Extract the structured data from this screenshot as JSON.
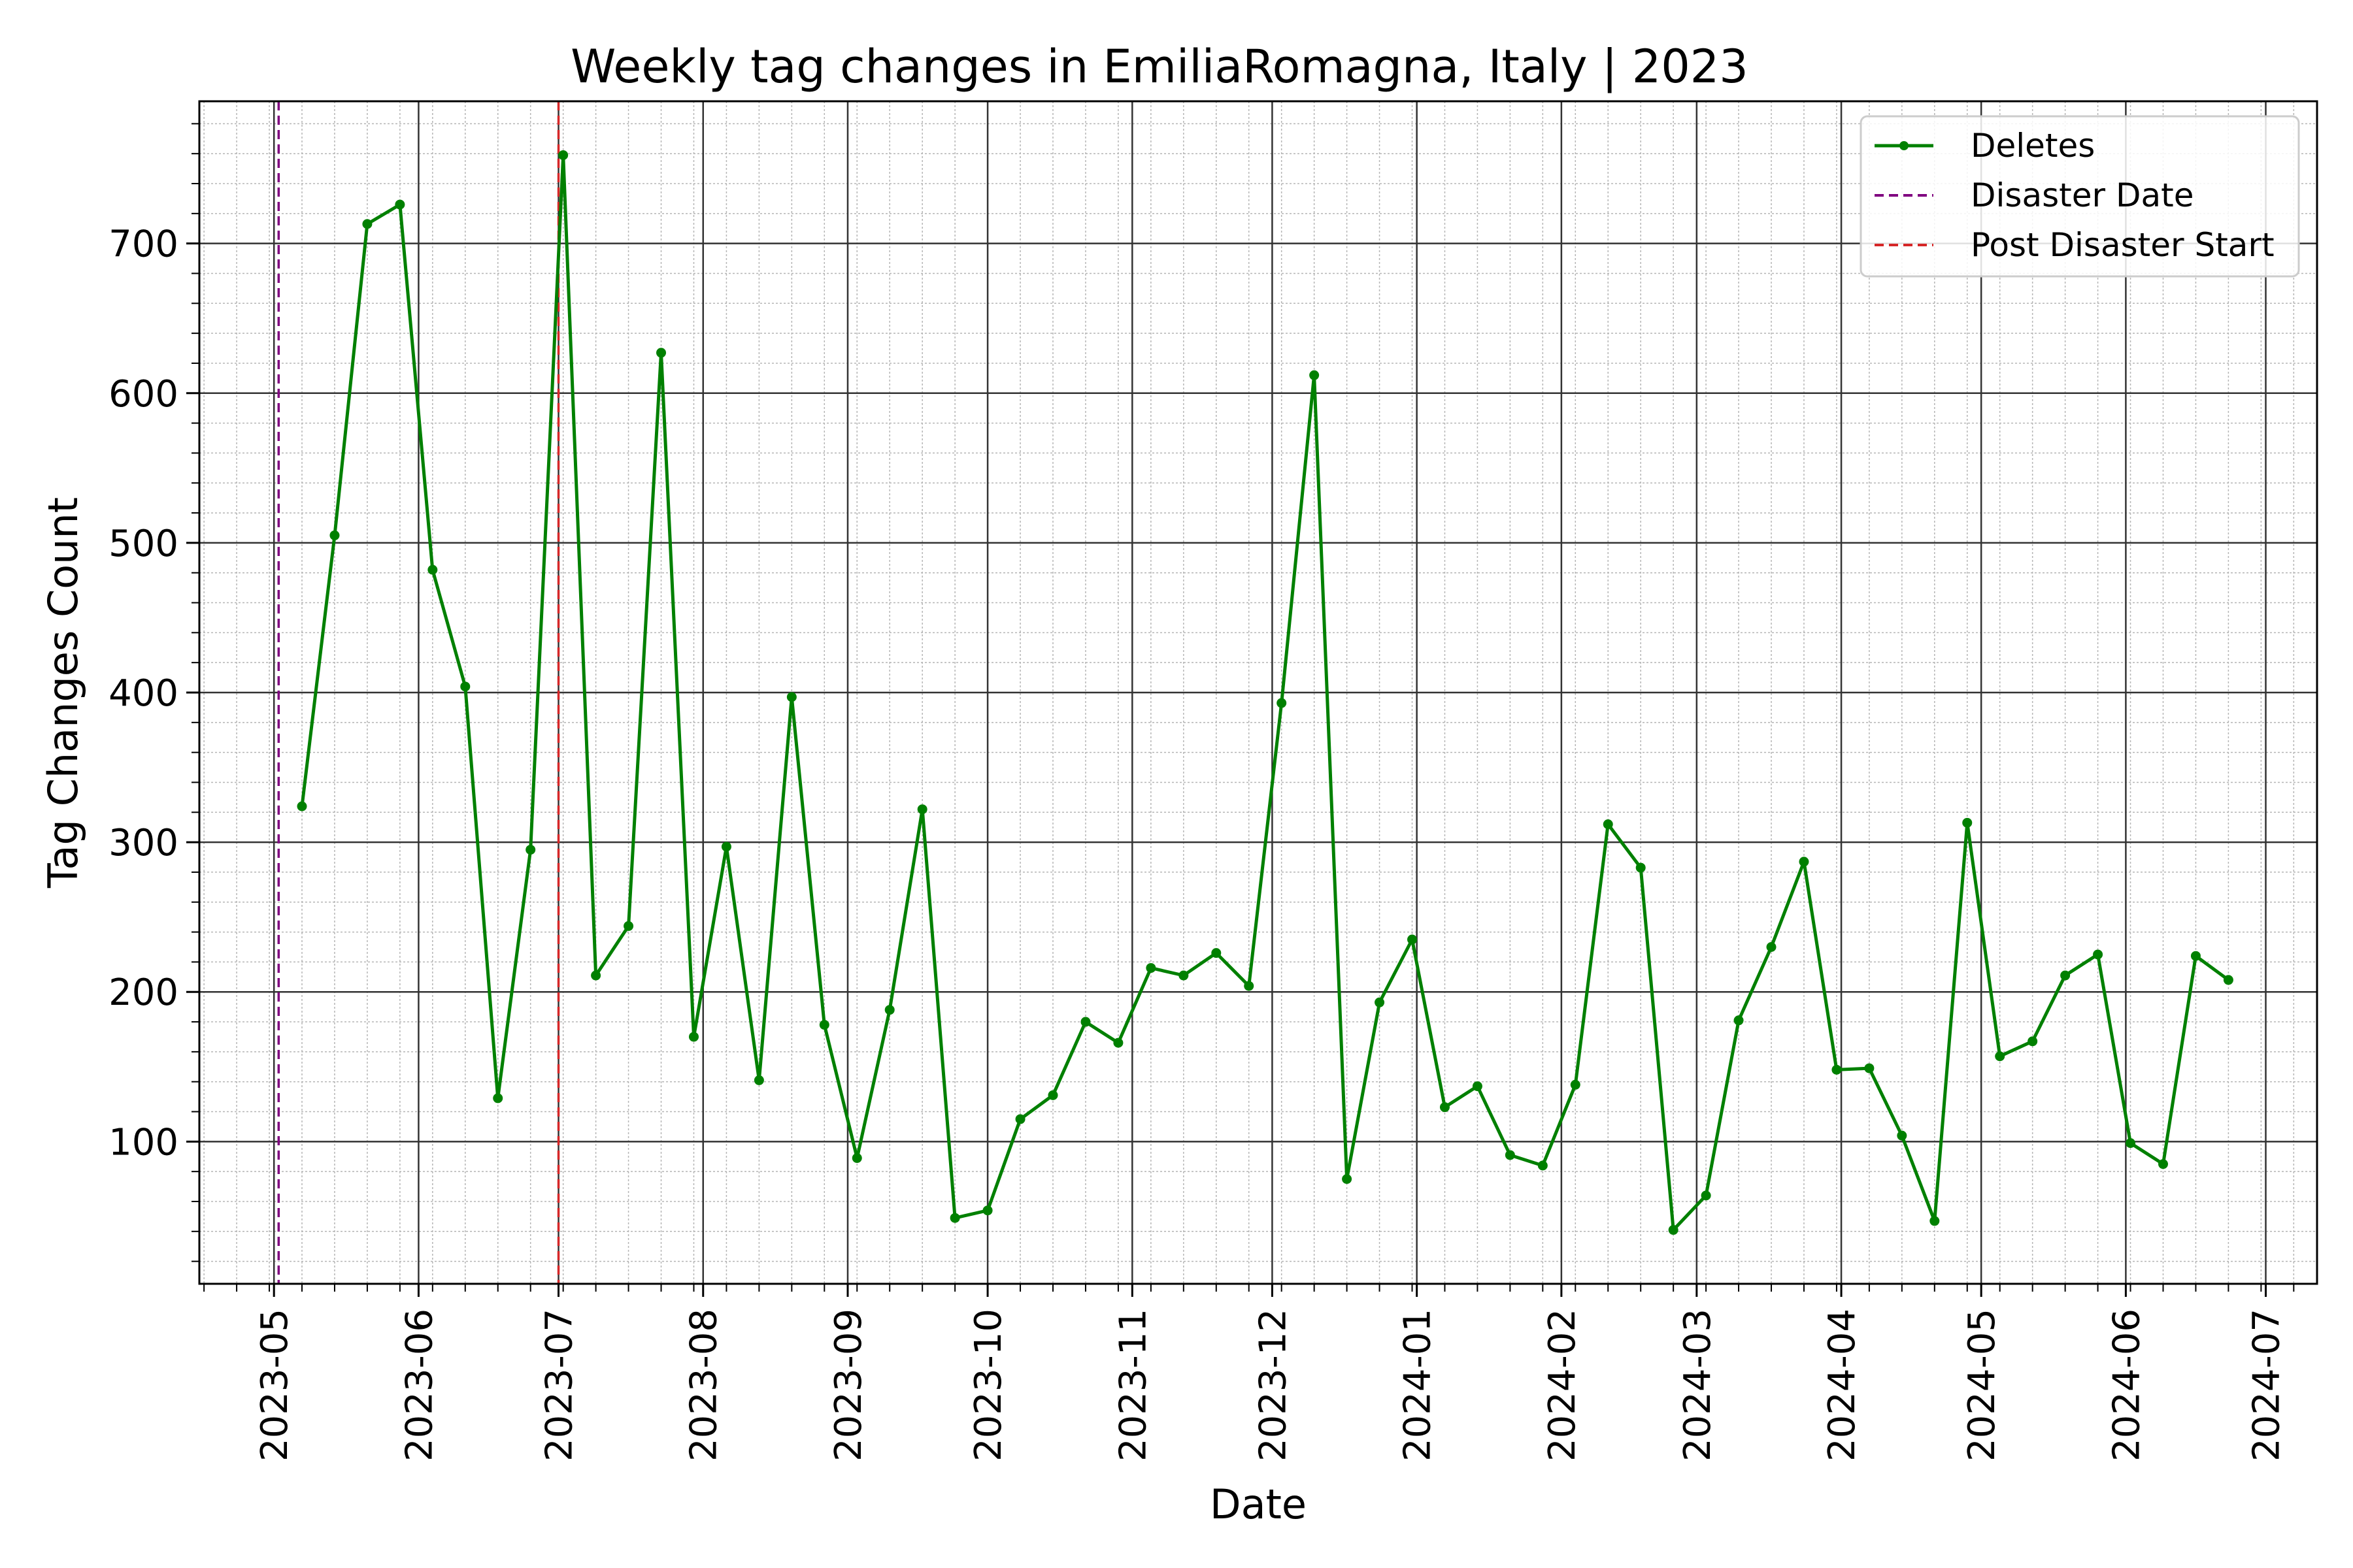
{
  "chart_data": {
    "type": "line",
    "title": "Weekly tag changes in EmiliaRomagna, Italy | 2023",
    "xlabel": "Date",
    "ylabel": "Tag Changes Count",
    "x_axis_type": "date",
    "xlim": [
      "2023-04-15",
      "2024-07-12"
    ],
    "ylim": [
      5,
      795
    ],
    "x_ticks": [
      "2023-05-01",
      "2023-06-01",
      "2023-07-01",
      "2023-08-01",
      "2023-09-01",
      "2023-10-01",
      "2023-11-01",
      "2023-12-01",
      "2024-01-01",
      "2024-02-01",
      "2024-03-01",
      "2024-04-01",
      "2024-05-01",
      "2024-06-01",
      "2024-07-01"
    ],
    "x_tick_labels": [
      "2023-05",
      "2023-06",
      "2023-07",
      "2023-08",
      "2023-09",
      "2023-10",
      "2023-11",
      "2023-12",
      "2024-01",
      "2024-02",
      "2024-03",
      "2024-04",
      "2024-05",
      "2024-06",
      "2024-07"
    ],
    "y_ticks": [
      100,
      200,
      300,
      400,
      500,
      600,
      700
    ],
    "y_tick_labels": [
      "100",
      "200",
      "300",
      "400",
      "500",
      "600",
      "700"
    ],
    "grid": true,
    "minor_grid": true,
    "legend_position": "top-right",
    "series": [
      {
        "name": "Deletes",
        "color": "#008000",
        "marker": "circle",
        "x": [
          "2023-05-07",
          "2023-05-14",
          "2023-05-21",
          "2023-05-28",
          "2023-06-04",
          "2023-06-11",
          "2023-06-18",
          "2023-06-25",
          "2023-07-02",
          "2023-07-09",
          "2023-07-16",
          "2023-07-23",
          "2023-07-30",
          "2023-08-06",
          "2023-08-13",
          "2023-08-20",
          "2023-08-27",
          "2023-09-03",
          "2023-09-10",
          "2023-09-17",
          "2023-09-24",
          "2023-10-01",
          "2023-10-08",
          "2023-10-15",
          "2023-10-22",
          "2023-10-29",
          "2023-11-05",
          "2023-11-12",
          "2023-11-19",
          "2023-11-26",
          "2023-12-03",
          "2023-12-10",
          "2023-12-17",
          "2023-12-24",
          "2023-12-31",
          "2024-01-07",
          "2024-01-14",
          "2024-01-21",
          "2024-01-28",
          "2024-02-04",
          "2024-02-11",
          "2024-02-18",
          "2024-02-25",
          "2024-03-03",
          "2024-03-10",
          "2024-03-17",
          "2024-03-24",
          "2024-03-31",
          "2024-04-07",
          "2024-04-14",
          "2024-04-21",
          "2024-04-28",
          "2024-05-05",
          "2024-05-12",
          "2024-05-19",
          "2024-05-26",
          "2024-06-02",
          "2024-06-09",
          "2024-06-16",
          "2024-06-23"
        ],
        "y": [
          324,
          505,
          713,
          726,
          482,
          404,
          129,
          295,
          759,
          211,
          244,
          627,
          170,
          297,
          141,
          397,
          178,
          89,
          188,
          322,
          49,
          54,
          115,
          131,
          180,
          166,
          216,
          211,
          226,
          204,
          393,
          612,
          75,
          193,
          235,
          123,
          137,
          91,
          84,
          138,
          312,
          283,
          41,
          64,
          181,
          230,
          287,
          148,
          149,
          104,
          47,
          313,
          157,
          167,
          211,
          225,
          99,
          85,
          224,
          208
        ]
      }
    ],
    "vertical_lines": [
      {
        "name": "Disaster Date",
        "x": "2023-05-02",
        "color": "#800080",
        "style": "dashed"
      },
      {
        "name": "Post Disaster Start",
        "x": "2023-07-01",
        "color": "#d62728",
        "style": "dashed"
      }
    ]
  }
}
